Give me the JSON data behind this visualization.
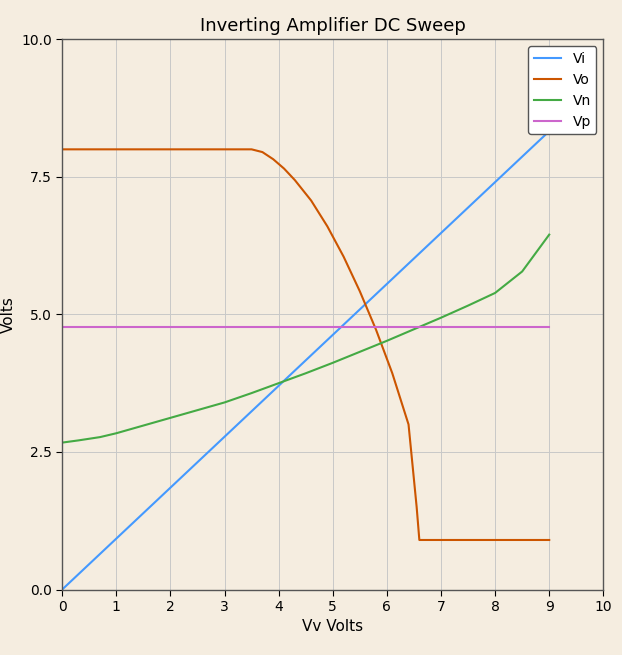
{
  "title": "Inverting Amplifier DC Sweep",
  "xlabel": "Vv Volts",
  "ylabel": "Volts",
  "xlim": [
    0,
    10
  ],
  "ylim": [
    0.0,
    10.0
  ],
  "yticks": [
    0.0,
    2.5,
    5.0,
    7.5,
    10.0
  ],
  "xticks": [
    0,
    1,
    2,
    3,
    4,
    5,
    6,
    7,
    8,
    9,
    10
  ],
  "background_color": "#f5ede0",
  "grid_color": "#c8c8c8",
  "legend_loc": "upper right",
  "Vi": {
    "color": "#4499ff",
    "label": "Vi",
    "x": [
      0,
      9.0
    ],
    "y": [
      0.0,
      8.33
    ]
  },
  "Vo": {
    "color": "#cc5500",
    "label": "Vo",
    "x": [
      0,
      3.5,
      3.7,
      3.9,
      4.1,
      4.3,
      4.6,
      4.9,
      5.2,
      5.5,
      5.8,
      6.1,
      6.4,
      6.55,
      6.6,
      9.0
    ],
    "y": [
      8.0,
      8.0,
      7.95,
      7.82,
      7.65,
      7.44,
      7.07,
      6.6,
      6.05,
      5.42,
      4.72,
      3.93,
      3.0,
      1.5,
      0.9,
      0.9
    ]
  },
  "Vn": {
    "color": "#44aa44",
    "label": "Vn",
    "x": [
      0,
      0.3,
      0.7,
      1.0,
      1.5,
      2.0,
      2.5,
      3.0,
      3.5,
      4.0,
      4.5,
      5.0,
      5.5,
      6.0,
      6.5,
      7.0,
      7.5,
      8.0,
      8.5,
      9.0
    ],
    "y": [
      2.67,
      2.71,
      2.77,
      2.84,
      2.98,
      3.12,
      3.26,
      3.4,
      3.57,
      3.75,
      3.93,
      4.12,
      4.32,
      4.52,
      4.73,
      4.94,
      5.16,
      5.39,
      5.78,
      6.45
    ]
  },
  "Vp": {
    "color": "#cc66cc",
    "label": "Vp",
    "x": [
      0,
      9.0
    ],
    "y": [
      4.78,
      4.78
    ]
  }
}
